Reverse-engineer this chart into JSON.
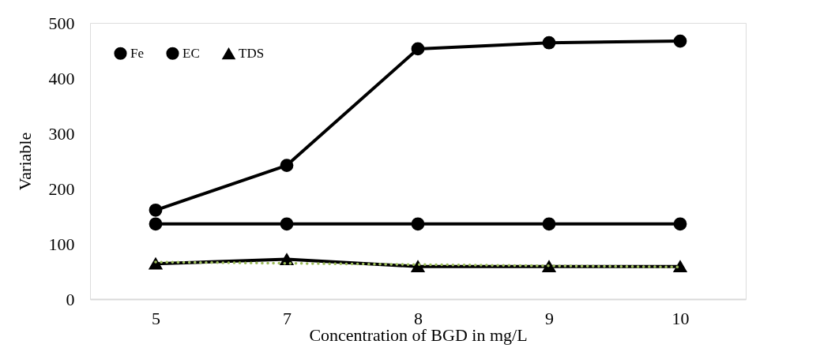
{
  "chart_data": {
    "type": "line",
    "xlabel": "Concentration of BGD in mg/L",
    "ylabel": "Variable",
    "categories": [
      "5",
      "7",
      "8",
      "9",
      "10"
    ],
    "series": [
      {
        "name": "Fe",
        "color": "#000000",
        "marker": "circle",
        "values": [
          161,
          242,
          453,
          464,
          467
        ]
      },
      {
        "name": "EC",
        "color": "#000000",
        "marker": "circle",
        "values": [
          136,
          136,
          136,
          136,
          136
        ]
      },
      {
        "name": "TDS",
        "color": "#000000",
        "marker": "triangle",
        "values": [
          64,
          72,
          59,
          59,
          59
        ]
      },
      {
        "type": "line",
        "color": "#9bbb59",
        "line_style": "dotted",
        "marker": "none",
        "x": [
          "5",
          "10"
        ],
        "values": [
          67,
          58
        ]
      }
    ],
    "ylim": [
      0,
      500
    ],
    "yticks": [
      0,
      100,
      200,
      300,
      400,
      500
    ],
    "grid": false,
    "legend": "top left",
    "line_style": "solid"
  }
}
